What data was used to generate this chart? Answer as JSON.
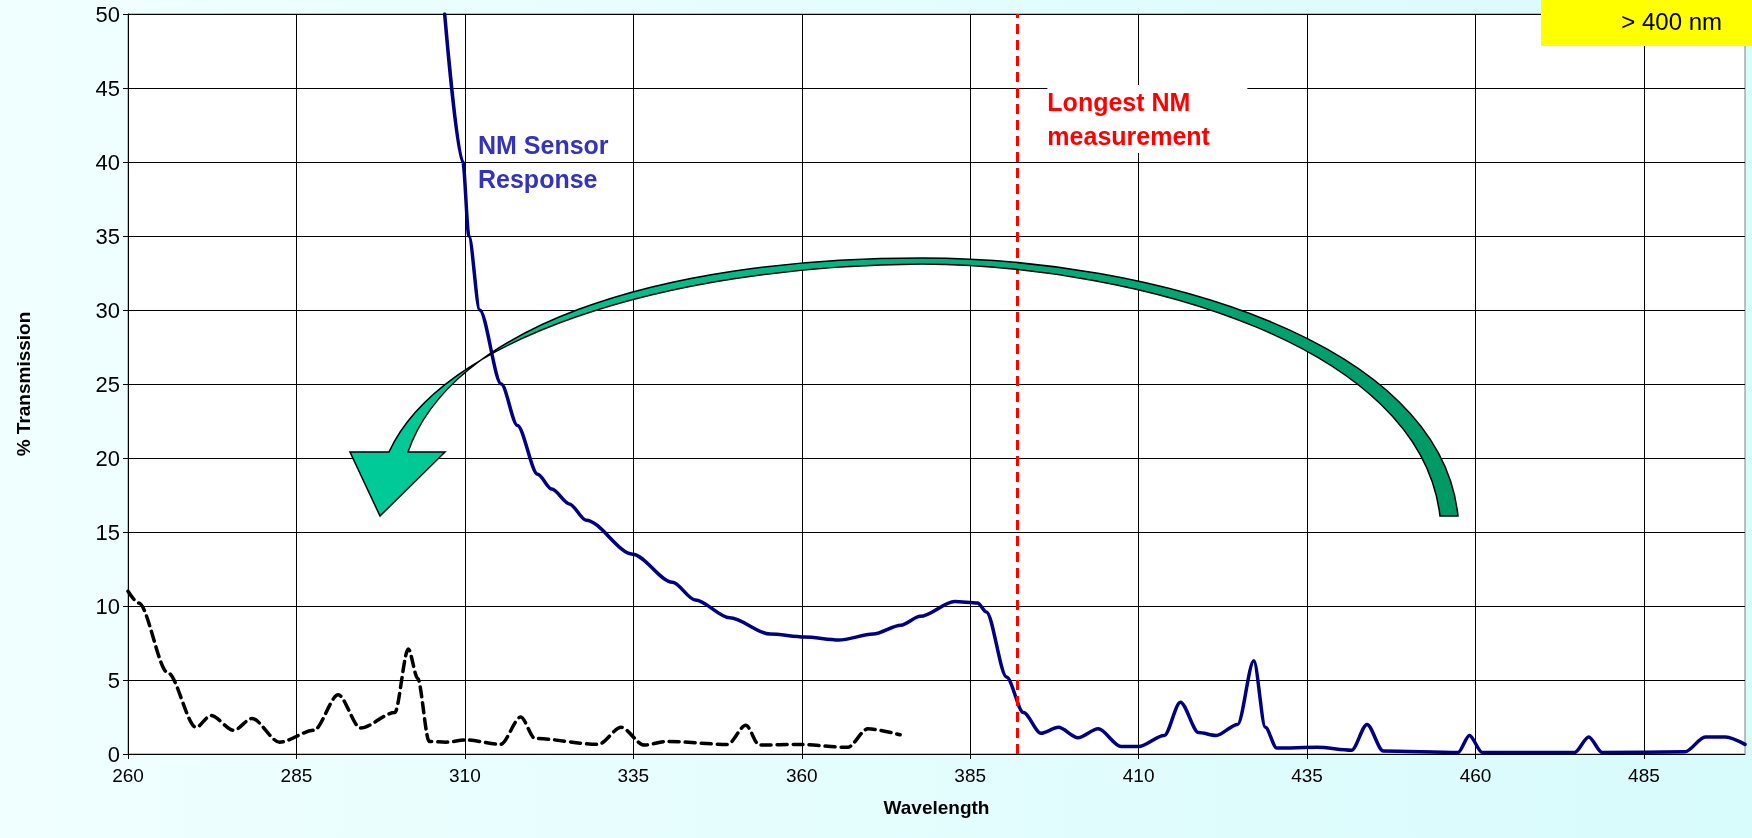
{
  "chart_data": {
    "type": "line",
    "xlabel": "Wavelength",
    "ylabel": "% Transmission",
    "xlim": [
      260,
      500
    ],
    "xticks": [
      260,
      285,
      310,
      335,
      360,
      385,
      410,
      435,
      460,
      485
    ],
    "ylim": [
      0,
      50
    ],
    "yticks": [
      0,
      5,
      10,
      15,
      20,
      25,
      30,
      35,
      40,
      45,
      50
    ],
    "grid": true,
    "legend": false,
    "marker": "none",
    "annotations": [
      "> 400 nm"
    ],
    "ref_lines": [
      {
        "axis": "x",
        "value": 392,
        "label": "Longest NM measurement",
        "color": "#ff0000",
        "line_style": "dashed"
      }
    ],
    "series": [
      {
        "name": "NM Sensor Response",
        "color": "#000080",
        "line_style": "solid",
        "x": [
          307,
          309.7,
          310.6,
          312.2,
          315.4,
          317.8,
          320.8,
          322.9,
          325.5,
          328,
          334.9,
          340.8,
          344.2,
          349.3,
          355.3,
          360.4,
          365.5,
          370.6,
          374.7,
          377.6,
          382.7,
          386.1,
          387.4,
          390.4,
          392.9,
          395.5,
          398.1,
          401,
          404,
          407.4,
          410,
          413.8,
          416.2,
          418.9,
          421.5,
          424.7,
          427.1,
          428.8,
          430.5,
          436.5,
          441.6,
          443.9,
          446.3,
          457.4,
          459.1,
          461,
          474.7,
          476.8,
          478.8,
          491.1,
          494.1,
          497.1,
          500
        ],
        "values": [
          50,
          40,
          35,
          30,
          25,
          22.2,
          18.9,
          17.9,
          16.9,
          15.8,
          13.5,
          11.6,
          10.4,
          9.2,
          8.1,
          7.9,
          7.7,
          8.1,
          8.7,
          9.3,
          10.3,
          10.2,
          9.6,
          5.2,
          2.8,
          1.4,
          1.8,
          1.1,
          1.7,
          0.5,
          0.5,
          1.25,
          3.5,
          1.45,
          1.25,
          2,
          6.3,
          1.8,
          0.4,
          0.45,
          0.25,
          2,
          0.2,
          0.1,
          1.25,
          0.1,
          0.1,
          1.15,
          0.1,
          0.15,
          1.15,
          1.15,
          0.65
        ]
      },
      {
        "color": "#000000",
        "line_style": "dashed",
        "x": [
          260,
          261.6,
          265.9,
          270.1,
          272.3,
          275.7,
          278.4,
          282.5,
          287.6,
          291.2,
          294.5,
          299.6,
          301.6,
          303,
          304.7,
          307.2,
          310.2,
          315.3,
          318.3,
          320.4,
          329.8,
          333.2,
          336.6,
          340,
          349,
          351.7,
          353.7,
          359.6,
          366.8,
          369.8,
          374.6
        ],
        "values": [
          11,
          10.2,
          5.5,
          1.8,
          2.6,
          1.6,
          2.4,
          0.8,
          1.6,
          4,
          1.75,
          2.8,
          7.1,
          5.1,
          0.85,
          0.8,
          0.95,
          0.65,
          2.5,
          1.05,
          0.65,
          1.8,
          0.6,
          0.85,
          0.65,
          1.95,
          0.6,
          0.65,
          0.45,
          1.7,
          1.3
        ]
      }
    ]
  }
}
